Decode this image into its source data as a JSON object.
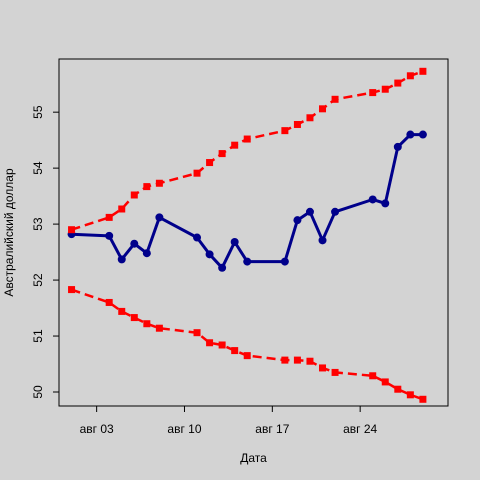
{
  "chart_data": {
    "type": "line",
    "title": "",
    "xlabel": "Дата",
    "ylabel": "Австралийский доллар",
    "xlim": [
      "2013-07-31",
      "2013-08-31"
    ],
    "ylim": [
      49.75,
      55.95
    ],
    "x_ticks": [
      {
        "date": "2013-08-03",
        "label": "авг 03"
      },
      {
        "date": "2013-08-10",
        "label": "авг 10"
      },
      {
        "date": "2013-08-17",
        "label": "авг 17"
      },
      {
        "date": "2013-08-24",
        "label": "авг 24"
      }
    ],
    "y_ticks": [
      50,
      51,
      52,
      53,
      54,
      55
    ],
    "grid": false,
    "legend": "none",
    "series": [
      {
        "role": "value",
        "color": "#00008b",
        "style": "solid",
        "x": [
          "2013-08-01",
          "2013-08-04",
          "2013-08-05",
          "2013-08-06",
          "2013-08-07",
          "2013-08-08",
          "2013-08-11",
          "2013-08-12",
          "2013-08-13",
          "2013-08-14",
          "2013-08-15",
          "2013-08-18",
          "2013-08-19",
          "2013-08-20",
          "2013-08-21",
          "2013-08-22",
          "2013-08-25",
          "2013-08-26",
          "2013-08-27",
          "2013-08-28",
          "2013-08-29"
        ],
        "y": [
          52.82,
          52.79,
          52.37,
          52.65,
          52.48,
          53.12,
          52.76,
          52.46,
          52.22,
          52.68,
          52.33,
          52.33,
          53.07,
          53.22,
          52.71,
          53.22,
          53.44,
          53.37,
          54.38,
          54.6,
          54.6
        ]
      },
      {
        "role": "upper",
        "color": "#ff0000",
        "style": "dashed",
        "x": [
          "2013-08-01",
          "2013-08-04",
          "2013-08-05",
          "2013-08-06",
          "2013-08-07",
          "2013-08-08",
          "2013-08-11",
          "2013-08-12",
          "2013-08-13",
          "2013-08-14",
          "2013-08-15",
          "2013-08-18",
          "2013-08-19",
          "2013-08-20",
          "2013-08-21",
          "2013-08-22",
          "2013-08-25",
          "2013-08-26",
          "2013-08-27",
          "2013-08-28",
          "2013-08-29"
        ],
        "y": [
          52.9,
          53.12,
          53.27,
          53.52,
          53.67,
          53.73,
          53.91,
          54.1,
          54.26,
          54.41,
          54.52,
          54.67,
          54.78,
          54.9,
          55.06,
          55.23,
          55.35,
          55.41,
          55.52,
          55.65,
          55.73
        ]
      },
      {
        "role": "lower",
        "color": "#ff0000",
        "style": "dashed",
        "x": [
          "2013-08-01",
          "2013-08-04",
          "2013-08-05",
          "2013-08-06",
          "2013-08-07",
          "2013-08-08",
          "2013-08-11",
          "2013-08-12",
          "2013-08-13",
          "2013-08-14",
          "2013-08-15",
          "2013-08-18",
          "2013-08-19",
          "2013-08-20",
          "2013-08-21",
          "2013-08-22",
          "2013-08-25",
          "2013-08-26",
          "2013-08-27",
          "2013-08-28",
          "2013-08-29"
        ],
        "y": [
          51.83,
          51.6,
          51.44,
          51.33,
          51.22,
          51.14,
          51.06,
          50.88,
          50.84,
          50.74,
          50.65,
          50.57,
          50.57,
          50.55,
          50.43,
          50.35,
          50.29,
          50.18,
          50.05,
          49.95,
          49.87
        ]
      }
    ]
  }
}
